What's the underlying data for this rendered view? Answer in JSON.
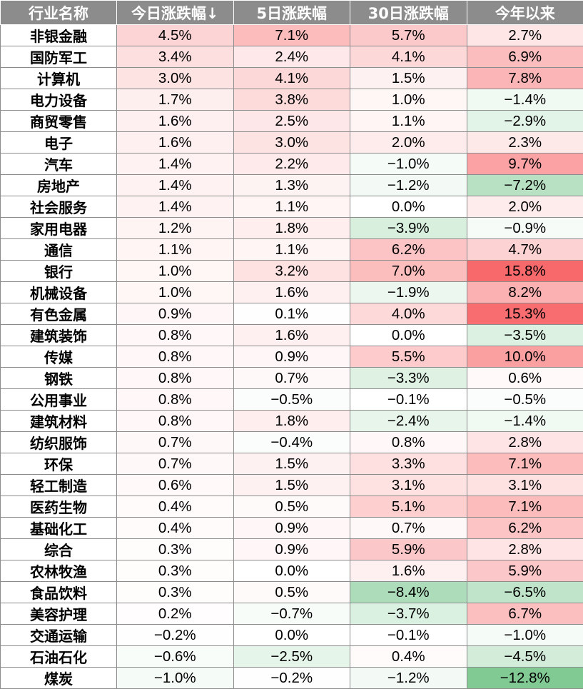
{
  "header": {
    "industry": "行业名称",
    "today": "今日涨跌幅↓",
    "d5": "5日涨跌幅",
    "d30": "30日涨跌幅",
    "ytd": "今年以来"
  },
  "rows": [
    {
      "name": "非银金融",
      "values": [
        "4.5%",
        "7.1%",
        "5.7%",
        "2.7%"
      ]
    },
    {
      "name": "国防军工",
      "values": [
        "3.4%",
        "2.4%",
        "4.1%",
        "6.9%"
      ]
    },
    {
      "name": "计算机",
      "values": [
        "3.0%",
        "4.1%",
        "1.5%",
        "7.8%"
      ]
    },
    {
      "name": "电力设备",
      "values": [
        "1.7%",
        "3.8%",
        "1.0%",
        "−1.4%"
      ]
    },
    {
      "name": "商贸零售",
      "values": [
        "1.6%",
        "2.5%",
        "1.1%",
        "−2.9%"
      ]
    },
    {
      "name": "电子",
      "values": [
        "1.6%",
        "3.0%",
        "2.0%",
        "2.3%"
      ]
    },
    {
      "name": "汽车",
      "values": [
        "1.4%",
        "2.2%",
        "−1.0%",
        "9.7%"
      ]
    },
    {
      "name": "房地产",
      "values": [
        "1.4%",
        "1.3%",
        "−1.2%",
        "−7.2%"
      ]
    },
    {
      "name": "社会服务",
      "values": [
        "1.4%",
        "1.1%",
        "0.0%",
        "2.0%"
      ]
    },
    {
      "name": "家用电器",
      "values": [
        "1.2%",
        "1.8%",
        "−3.9%",
        "−0.9%"
      ]
    },
    {
      "name": "通信",
      "values": [
        "1.1%",
        "1.1%",
        "6.2%",
        "4.7%"
      ]
    },
    {
      "name": "银行",
      "values": [
        "1.0%",
        "3.2%",
        "7.0%",
        "15.8%"
      ]
    },
    {
      "name": "机械设备",
      "values": [
        "1.0%",
        "1.6%",
        "−1.9%",
        "8.2%"
      ]
    },
    {
      "name": "有色金属",
      "values": [
        "0.9%",
        "0.1%",
        "4.0%",
        "15.3%"
      ]
    },
    {
      "name": "建筑装饰",
      "values": [
        "0.8%",
        "1.6%",
        "0.0%",
        "−3.5%"
      ]
    },
    {
      "name": "传媒",
      "values": [
        "0.8%",
        "0.9%",
        "5.5%",
        "10.0%"
      ]
    },
    {
      "name": "钢铁",
      "values": [
        "0.8%",
        "0.7%",
        "−3.3%",
        "0.6%"
      ]
    },
    {
      "name": "公用事业",
      "values": [
        "0.8%",
        "−0.5%",
        "−0.1%",
        "−0.5%"
      ]
    },
    {
      "name": "建筑材料",
      "values": [
        "0.8%",
        "1.8%",
        "−2.4%",
        "−1.4%"
      ]
    },
    {
      "name": "纺织服饰",
      "values": [
        "0.7%",
        "−0.4%",
        "0.8%",
        "2.8%"
      ]
    },
    {
      "name": "环保",
      "values": [
        "0.7%",
        "1.5%",
        "3.3%",
        "7.1%"
      ]
    },
    {
      "name": "轻工制造",
      "values": [
        "0.6%",
        "1.5%",
        "3.1%",
        "3.1%"
      ]
    },
    {
      "name": "医药生物",
      "values": [
        "0.4%",
        "0.5%",
        "5.1%",
        "7.1%"
      ]
    },
    {
      "name": "基础化工",
      "values": [
        "0.4%",
        "0.9%",
        "0.7%",
        "6.2%"
      ]
    },
    {
      "name": "综合",
      "values": [
        "0.3%",
        "0.9%",
        "5.9%",
        "2.8%"
      ]
    },
    {
      "name": "农林牧渔",
      "values": [
        "0.3%",
        "0.0%",
        "1.6%",
        "5.9%"
      ]
    },
    {
      "name": "食品饮料",
      "values": [
        "0.3%",
        "0.5%",
        "−8.4%",
        "−6.5%"
      ]
    },
    {
      "name": "美容护理",
      "values": [
        "0.2%",
        "−0.7%",
        "−3.7%",
        "6.7%"
      ]
    },
    {
      "name": "交通运输",
      "values": [
        "−0.2%",
        "0.0%",
        "−0.1%",
        "−1.0%"
      ]
    },
    {
      "name": "石油石化",
      "values": [
        "−0.6%",
        "−2.5%",
        "0.4%",
        "−4.5%"
      ]
    },
    {
      "name": "煤炭",
      "values": [
        "−1.0%",
        "−0.2%",
        "−1.2%",
        "−12.8%"
      ]
    }
  ],
  "colors": {
    "header_bg": "#8c8c8c",
    "header_text": "#ffffff",
    "positive": "#f8696b",
    "negative": "#63be7b",
    "neutral": "#ffffff",
    "grid": "#8c8c8c"
  },
  "colorscale_max_abs_percent": {
    "today": 15.8,
    "d5": 15.8,
    "d30": 15.8,
    "ytd": 15.8
  }
}
